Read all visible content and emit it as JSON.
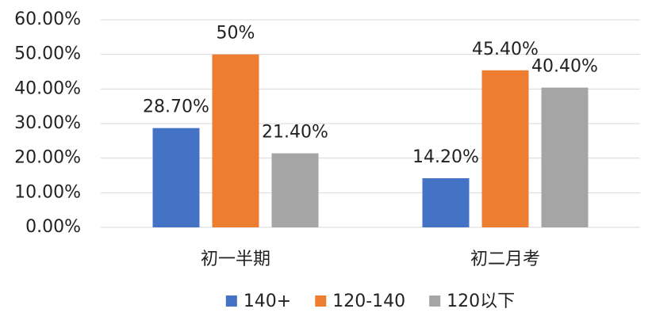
{
  "chart_data": {
    "type": "bar",
    "categories": [
      "初一半期",
      "初二月考"
    ],
    "series": [
      {
        "name": "140+",
        "color": "#4472c4",
        "values": [
          28.7,
          14.2
        ],
        "value_labels": [
          "28.70%",
          "14.20%"
        ]
      },
      {
        "name": "120-140",
        "color": "#ed7d31",
        "values": [
          50,
          45.4
        ],
        "value_labels": [
          "50%",
          "45.40%"
        ]
      },
      {
        "name": "120以下",
        "color": "#a5a5a5",
        "values": [
          21.4,
          40.4
        ],
        "value_labels": [
          "21.40%",
          "40.40%"
        ]
      }
    ],
    "ylim": [
      0,
      60
    ],
    "yticks": [
      {
        "value": 0,
        "label": "0.00%"
      },
      {
        "value": 10,
        "label": "10.00%"
      },
      {
        "value": 20,
        "label": "20.00%"
      },
      {
        "value": 30,
        "label": "30.00%"
      },
      {
        "value": 40,
        "label": "40.00%"
      },
      {
        "value": 50,
        "label": "50.00%"
      },
      {
        "value": 60,
        "label": "60.00%"
      }
    ],
    "grid": true,
    "legend": "bottom"
  }
}
